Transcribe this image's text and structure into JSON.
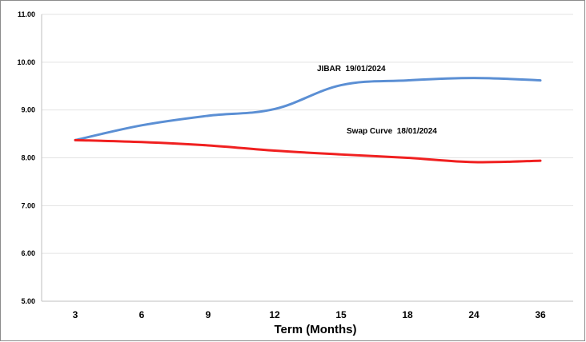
{
  "chart_data": {
    "type": "line",
    "title": "",
    "xlabel": "Term (Months)",
    "ylabel": "",
    "categories": [
      "3",
      "6",
      "9",
      "12",
      "15",
      "18",
      "24",
      "36"
    ],
    "ylim": [
      5.0,
      11.0
    ],
    "y_ticks": [
      "5.00",
      "6.00",
      "7.00",
      "8.00",
      "9.00",
      "10.00",
      "11.00"
    ],
    "grid": "horizontal",
    "series": [
      {
        "name": "JIBAR 19/01/2024",
        "color": "#5b8fd4",
        "values": [
          8.37,
          8.68,
          8.88,
          9.02,
          9.52,
          9.62,
          9.67,
          9.62
        ]
      },
      {
        "name": "Swap Curve 18/01/2024",
        "color": "#f02020",
        "values": [
          8.37,
          8.33,
          8.26,
          8.15,
          8.07,
          8.0,
          7.91,
          7.94
        ]
      }
    ],
    "annotations": [
      "JIBAR  19/01/2024",
      "Swap Curve  18/01/2024"
    ]
  }
}
